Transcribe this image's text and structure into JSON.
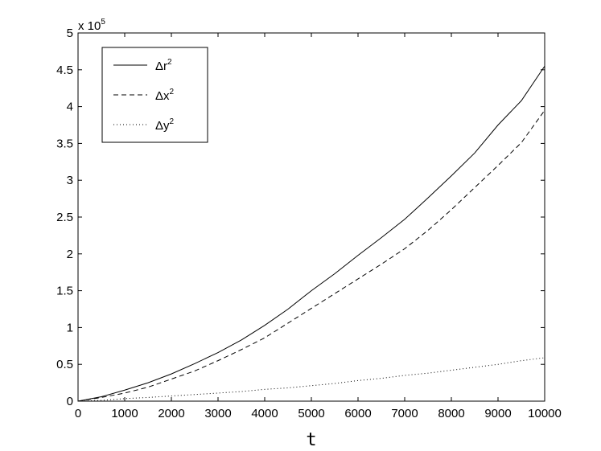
{
  "chart_data": {
    "type": "line",
    "xlabel": "t",
    "ylabel": "",
    "xlim": [
      0,
      10000
    ],
    "ylim": [
      0,
      5
    ],
    "xticks": [
      0,
      1000,
      2000,
      3000,
      4000,
      5000,
      6000,
      7000,
      8000,
      9000,
      10000
    ],
    "xtick_labels": [
      "0",
      "1000",
      "2000",
      "3000",
      "4000",
      "5000",
      "6000",
      "7000",
      "8000",
      "9000",
      "10000"
    ],
    "yticks": [
      0,
      0.5,
      1,
      1.5,
      2,
      2.5,
      3,
      3.5,
      4,
      4.5,
      5
    ],
    "ytick_labels": [
      "0",
      "0.5",
      "1",
      "1.5",
      "2",
      "2.5",
      "3",
      "3.5",
      "4",
      "4.5",
      "5"
    ],
    "y_multiplier": "x 10",
    "y_multiplier_exponent": "5",
    "grid": false,
    "legend_position": "top-left",
    "x": [
      0,
      500,
      1000,
      1500,
      2000,
      2500,
      3000,
      3500,
      4000,
      4500,
      5000,
      5500,
      6000,
      6500,
      7000,
      7500,
      8000,
      8500,
      9000,
      9500,
      10000
    ],
    "series": [
      {
        "name": "Δr",
        "superscript": "2",
        "style": "solid",
        "values": [
          0,
          0.06,
          0.15,
          0.25,
          0.37,
          0.51,
          0.66,
          0.83,
          1.03,
          1.25,
          1.5,
          1.73,
          1.98,
          2.22,
          2.47,
          2.76,
          3.06,
          3.37,
          3.75,
          4.08,
          4.55
        ]
      },
      {
        "name": "Δx",
        "superscript": "2",
        "style": "dashed",
        "values": [
          0,
          0.05,
          0.11,
          0.19,
          0.3,
          0.41,
          0.55,
          0.7,
          0.86,
          1.06,
          1.26,
          1.46,
          1.66,
          1.86,
          2.07,
          2.32,
          2.6,
          2.9,
          3.2,
          3.51,
          3.95
        ]
      },
      {
        "name": "Δy",
        "superscript": "2",
        "style": "dotted",
        "values": [
          0,
          0.01,
          0.035,
          0.05,
          0.07,
          0.09,
          0.11,
          0.13,
          0.16,
          0.18,
          0.21,
          0.24,
          0.28,
          0.31,
          0.35,
          0.38,
          0.42,
          0.46,
          0.5,
          0.55,
          0.59
        ]
      }
    ]
  }
}
